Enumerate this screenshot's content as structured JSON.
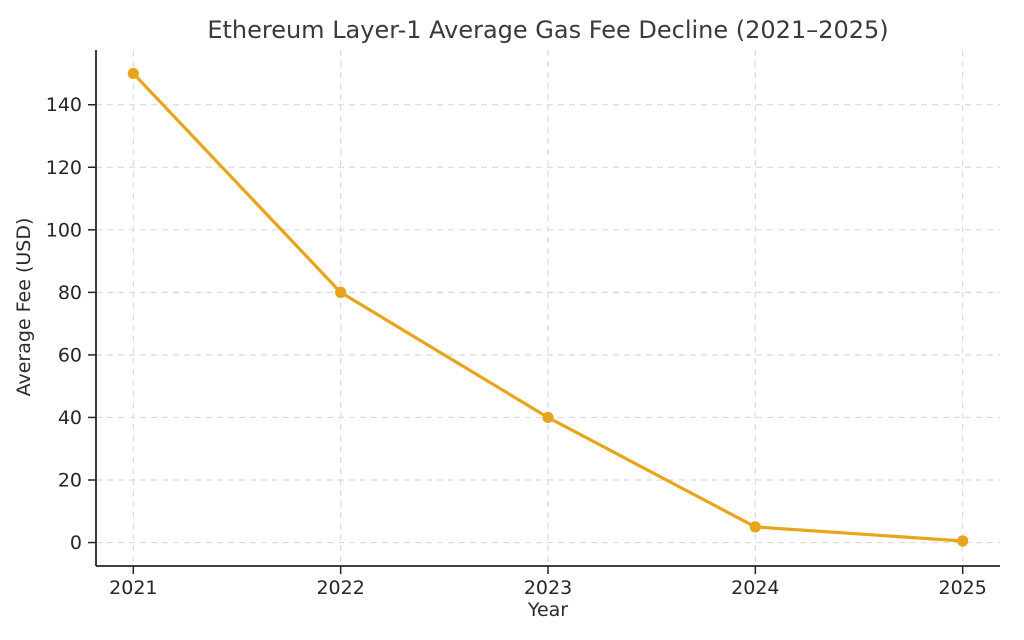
{
  "chart_data": {
    "type": "line",
    "title": "Ethereum Layer-1 Average Gas Fee Decline (2021–2025)",
    "xlabel": "Year",
    "ylabel": "Average Fee (USD)",
    "x": [
      2021,
      2022,
      2023,
      2024,
      2025
    ],
    "series": [
      {
        "name": "Average Fee (USD)",
        "values": [
          150,
          80,
          40,
          5,
          0.5
        ]
      }
    ],
    "xticks": [
      2021,
      2022,
      2023,
      2024,
      2025
    ],
    "yticks": [
      0,
      20,
      40,
      60,
      80,
      100,
      120,
      140
    ],
    "xlim": [
      2020.82,
      2025.18
    ],
    "ylim": [
      -7.5,
      157.5
    ],
    "grid": "dashed",
    "legend": "none",
    "colors": {
      "line": "#E8A41C",
      "marker": "#E8A41C",
      "grid": "#DBDBDB",
      "spine": "#262626",
      "title_text": "#3a3a3a",
      "tick_text": "#262626",
      "background": "#ffffff"
    }
  }
}
